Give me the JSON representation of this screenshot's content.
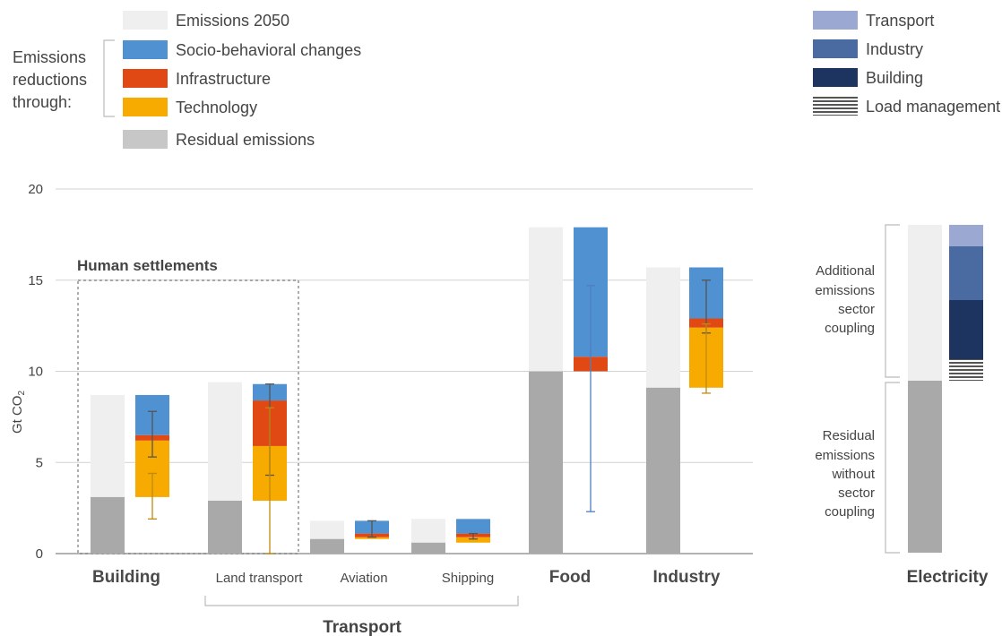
{
  "legend_left": {
    "intro": [
      "Emissions",
      "reductions",
      "through:"
    ],
    "items": [
      {
        "key": "emissions_2050",
        "label": "Emissions 2050",
        "color": "#efefef"
      },
      {
        "key": "socio",
        "label": "Socio-behavioral changes",
        "color": "#4f91d1"
      },
      {
        "key": "infra",
        "label": "Infrastructure",
        "color": "#e04814"
      },
      {
        "key": "tech",
        "label": "Technology",
        "color": "#f7aa00"
      },
      {
        "key": "residual",
        "label": "Residual emissions",
        "color": "#c7c7c7"
      }
    ]
  },
  "legend_right": {
    "items": [
      {
        "key": "transport",
        "label": "Transport",
        "color": "#9aa8d2"
      },
      {
        "key": "industry",
        "label": "Industry",
        "color": "#4a6aa2"
      },
      {
        "key": "building",
        "label": "Building",
        "color": "#1d3461"
      },
      {
        "key": "load",
        "label": "Load management",
        "color": "#555555"
      }
    ]
  },
  "human_settlements_label": "Human settlements",
  "transport_group_label": "Transport",
  "electricity_notes": {
    "additional": [
      "Additional",
      "emissions",
      "sector",
      "coupling"
    ],
    "residual": [
      "Residual",
      "emissions",
      "without",
      "sector",
      "coupling"
    ]
  },
  "chart_data": {
    "type": "bar",
    "ylabel": "Gt CO",
    "ylabel_sub": "2",
    "ylim": [
      0,
      20
    ],
    "yticks": [
      "0",
      "5",
      "10",
      "15",
      "20"
    ],
    "grid": true,
    "categories": [
      {
        "label": "Building",
        "emissions_2050": 8.7,
        "residual": 3.1,
        "tech": 3.1,
        "infra": 0.3,
        "socio": 2.2,
        "error_bars": [
          {
            "low": 5.3,
            "high": 7.8,
            "color": "#555555"
          },
          {
            "low": 1.9,
            "high": 4.4,
            "color": "#c08a10"
          }
        ]
      },
      {
        "label": "Land transport",
        "emissions_2050": 9.4,
        "residual": 2.9,
        "tech": 3.0,
        "infra": 2.5,
        "socio": 0.9,
        "error_bars": [
          {
            "low": 4.3,
            "high": 9.3,
            "color": "#555555"
          },
          {
            "low": 0.0,
            "high": 8.0,
            "color": "#c08a10"
          }
        ]
      },
      {
        "label": "Aviation",
        "emissions_2050": 1.8,
        "residual": 0.8,
        "tech": 0.1,
        "infra": 0.2,
        "socio": 0.7,
        "error_bars": [
          {
            "low": 0.9,
            "high": 1.8,
            "color": "#555555"
          }
        ]
      },
      {
        "label": "Shipping",
        "emissions_2050": 1.9,
        "residual": 0.6,
        "tech": 0.3,
        "infra": 0.2,
        "socio": 0.8,
        "error_bars": [
          {
            "low": 0.8,
            "high": 1.1,
            "color": "#555555"
          }
        ]
      },
      {
        "label": "Food",
        "emissions_2050": 17.9,
        "residual": 10.0,
        "tech": 0.0,
        "infra": 0.8,
        "socio": 7.1,
        "error_bars": [
          {
            "low": 2.3,
            "high": 14.7,
            "color": "#4f7fbf"
          }
        ]
      },
      {
        "label": "Industry",
        "emissions_2050": 15.7,
        "residual": 9.1,
        "tech": 3.3,
        "infra": 0.5,
        "socio": 2.8,
        "error_bars": [
          {
            "low": 12.1,
            "high": 15.0,
            "color": "#555555"
          },
          {
            "low": 8.8,
            "high": 12.6,
            "color": "#c08a10"
          }
        ]
      }
    ],
    "electricity": {
      "label": "Electricity",
      "total": 18.3,
      "residual": 9.6,
      "load_management": 1.2,
      "building": 3.3,
      "industry": 3.0,
      "transport": 1.2
    }
  }
}
